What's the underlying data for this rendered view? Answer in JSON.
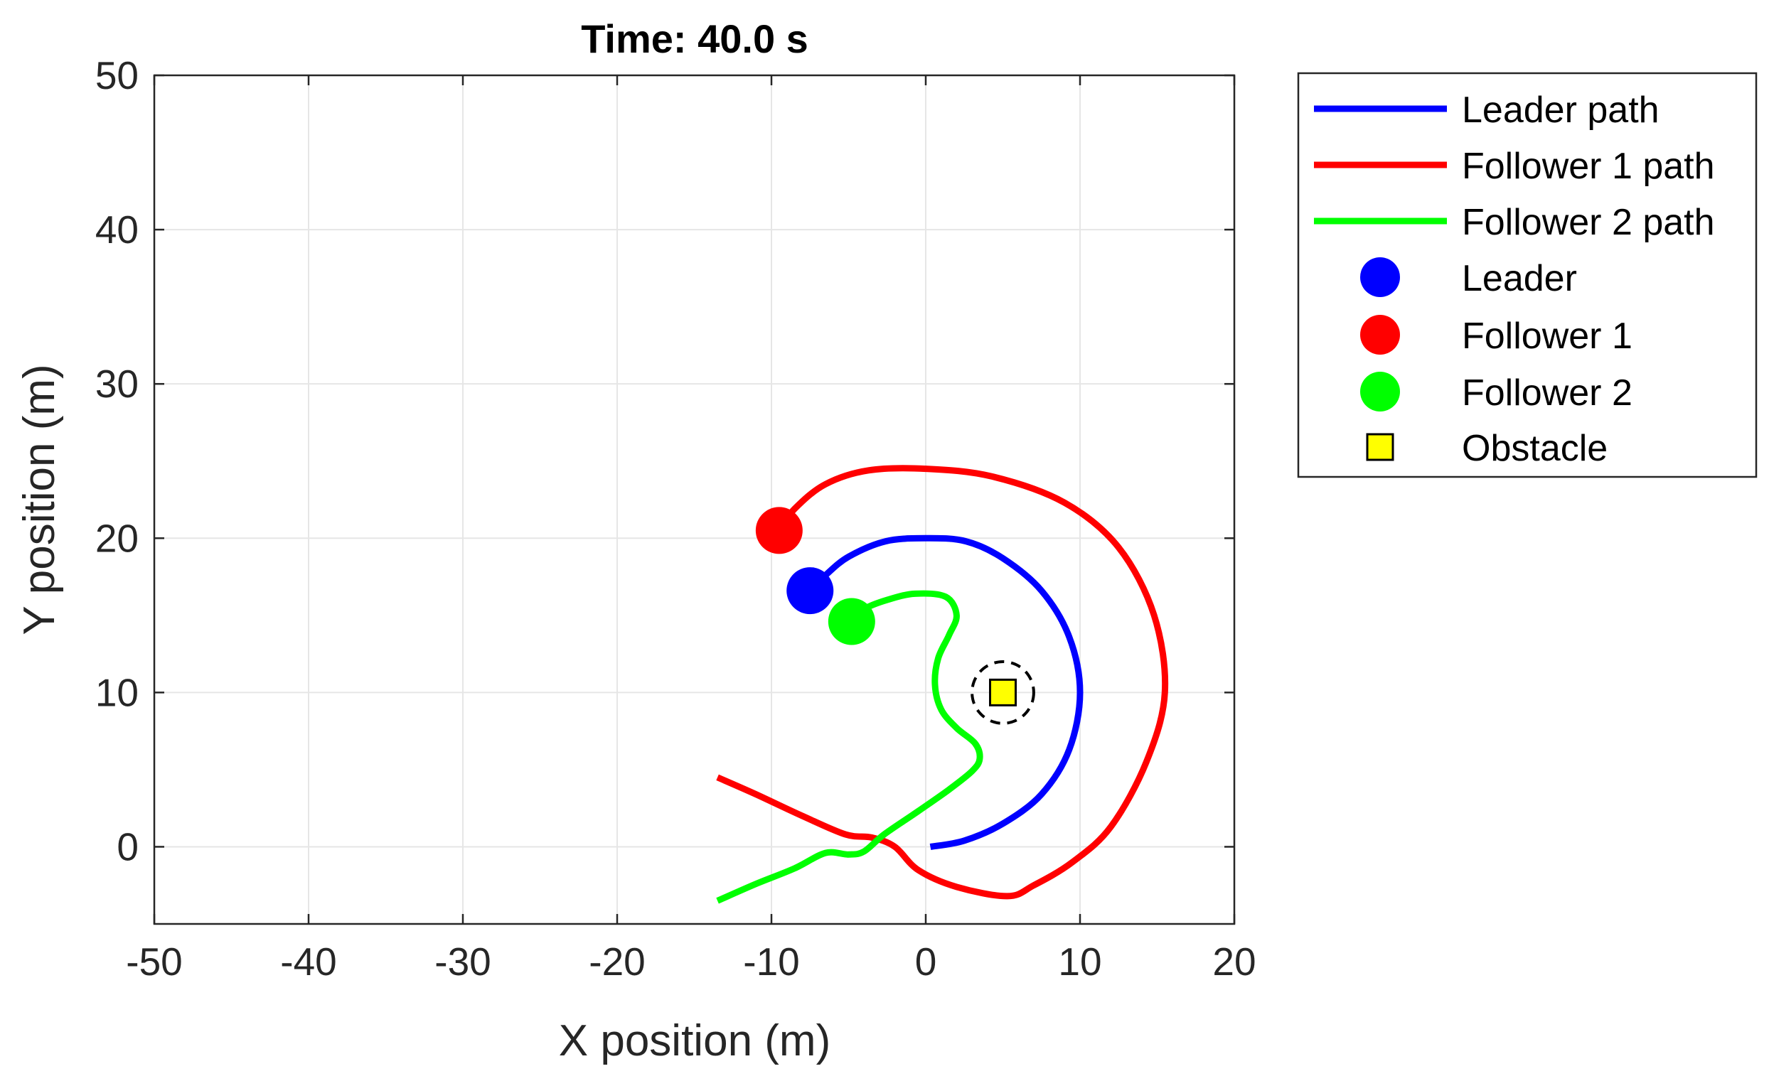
{
  "chart_data": {
    "type": "line",
    "title": "Time: 40.0 s",
    "xlabel": "X position (m)",
    "ylabel": "Y position (m)",
    "xlim": [
      -50,
      20
    ],
    "ylim": [
      -5,
      50
    ],
    "xticks": [
      -50,
      -40,
      -30,
      -20,
      -10,
      0,
      10,
      20
    ],
    "yticks": [
      0,
      10,
      20,
      30,
      40,
      50
    ],
    "xtick_labels": [
      "-50",
      "-40",
      "-30",
      "-20",
      "-10",
      "0",
      "10",
      "20"
    ],
    "ytick_labels": [
      "0",
      "10",
      "20",
      "30",
      "40",
      "50"
    ],
    "grid": true,
    "legend_position": "outside-top-right",
    "legend": {
      "leader_path": "Leader path",
      "follower1_path": "Follower 1 path",
      "follower2_path": "Follower 2 path",
      "leader": "Leader",
      "follower1": "Follower 1",
      "follower2": "Follower 2",
      "obstacle": "Obstacle"
    },
    "colors": {
      "leader": "#0000ff",
      "follower1": "#ff0000",
      "follower2": "#00ff00",
      "obstacle": "#ffff00"
    },
    "series": [
      {
        "name": "Leader path",
        "color": "#0000ff",
        "points": [
          [
            0.3,
            0
          ],
          [
            2.5,
            0.4
          ],
          [
            5,
            1.5
          ],
          [
            7.5,
            3.4
          ],
          [
            9.3,
            6.3
          ],
          [
            10,
            10
          ],
          [
            9.3,
            13.6
          ],
          [
            7.5,
            16.6
          ],
          [
            5,
            18.7
          ],
          [
            2.6,
            19.8
          ],
          [
            0,
            20
          ],
          [
            -2.6,
            19.8
          ],
          [
            -5,
            18.8
          ],
          [
            -6.5,
            17.6
          ],
          [
            -7.5,
            16.6
          ]
        ]
      },
      {
        "name": "Follower 1 path",
        "color": "#ff0000",
        "points": [
          [
            -13.5,
            4.5
          ],
          [
            -11,
            3.4
          ],
          [
            -8,
            2
          ],
          [
            -5.2,
            0.8
          ],
          [
            -3.5,
            0.6
          ],
          [
            -2,
            0
          ],
          [
            -0.5,
            -1.5
          ],
          [
            2,
            -2.6
          ],
          [
            5.3,
            -3.2
          ],
          [
            7,
            -2.5
          ],
          [
            9.5,
            -1
          ],
          [
            12,
            1.3
          ],
          [
            14.3,
            5.5
          ],
          [
            15.5,
            10
          ],
          [
            14.8,
            15
          ],
          [
            12.5,
            19.4
          ],
          [
            9,
            22.3
          ],
          [
            4.3,
            24
          ],
          [
            0,
            24.5
          ],
          [
            -3.7,
            24.4
          ],
          [
            -6.5,
            23.5
          ],
          [
            -8.5,
            21.9
          ],
          [
            -9.5,
            20.5
          ]
        ]
      },
      {
        "name": "Follower 2 path",
        "color": "#00ff00",
        "points": [
          [
            -13.5,
            -3.5
          ],
          [
            -11,
            -2.4
          ],
          [
            -8.5,
            -1.4
          ],
          [
            -6.5,
            -0.4
          ],
          [
            -5,
            -0.5
          ],
          [
            -4,
            -0.3
          ],
          [
            -2.7,
            0.8
          ],
          [
            -0.5,
            2.3
          ],
          [
            1.5,
            3.7
          ],
          [
            3,
            4.9
          ],
          [
            3.5,
            5.7
          ],
          [
            3.2,
            6.7
          ],
          [
            2,
            7.7
          ],
          [
            1,
            8.9
          ],
          [
            0.6,
            10.5
          ],
          [
            0.8,
            12.2
          ],
          [
            1.5,
            13.7
          ],
          [
            2,
            15
          ],
          [
            1.3,
            16.2
          ],
          [
            -0.7,
            16.4
          ],
          [
            -2.5,
            16
          ],
          [
            -4,
            15.4
          ],
          [
            -5,
            14.5
          ]
        ]
      }
    ],
    "markers": [
      {
        "name": "Leader",
        "x": -7.5,
        "y": 16.6,
        "color": "#0000ff"
      },
      {
        "name": "Follower 1",
        "x": -9.5,
        "y": 20.5,
        "color": "#ff0000"
      },
      {
        "name": "Follower 2",
        "x": -4.8,
        "y": 14.6,
        "color": "#00ff00"
      }
    ],
    "obstacle": {
      "name": "Obstacle",
      "x": 5,
      "y": 10,
      "safety_radius": 2
    }
  }
}
